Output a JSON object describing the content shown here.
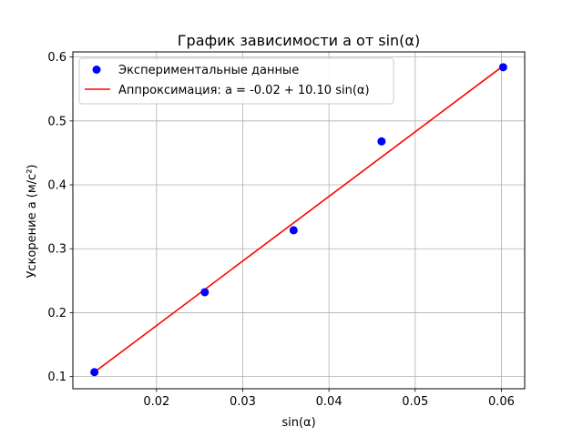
{
  "chart_data": {
    "type": "scatter",
    "title": "График зависимости a от sin(α)",
    "xlabel": "sin(α)",
    "ylabel": "Ускорение a (м/с²)",
    "xlim": [
      0.0103,
      0.0627
    ],
    "ylim": [
      0.081,
      0.608
    ],
    "xticks": [
      0.02,
      0.03,
      0.04,
      0.05,
      0.06
    ],
    "yticks": [
      0.1,
      0.2,
      0.3,
      0.4,
      0.5,
      0.6
    ],
    "xtick_labels": [
      "0.02",
      "0.03",
      "0.04",
      "0.05",
      "0.06"
    ],
    "ytick_labels": [
      "0.1",
      "0.2",
      "0.3",
      "0.4",
      "0.5",
      "0.6"
    ],
    "grid": true,
    "legend_position": "top-left",
    "series": [
      {
        "name": "Экспериментальные данные",
        "kind": "scatter",
        "color": "#0000ff",
        "x": [
          0.0128,
          0.0256,
          0.0359,
          0.0461,
          0.0602
        ],
        "y": [
          0.107,
          0.232,
          0.329,
          0.468,
          0.584
        ]
      },
      {
        "name": "Аппроксимация: a = -0.02 + 10.10 sin(α)",
        "kind": "line",
        "color": "#ff0000",
        "x": [
          0.0128,
          0.0602
        ],
        "y": [
          0.107,
          0.586
        ]
      }
    ]
  }
}
